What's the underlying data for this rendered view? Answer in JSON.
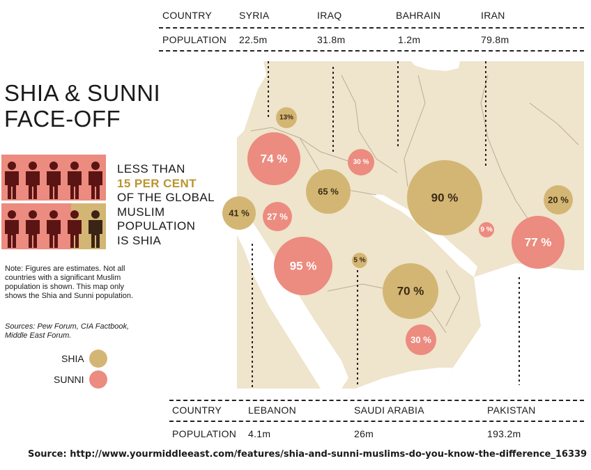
{
  "title_line1": "SHIA & SUNNI",
  "title_line2": "FACE-OFF",
  "blurb": {
    "line1": "LESS THAN",
    "line2": "15 PER CENT",
    "line3": "OF THE GLOBAL",
    "line4": "MUSLIM",
    "line5": "POPULATION",
    "line6": "IS SHIA"
  },
  "note": "Note: Figures are estimates. Not all countries with a significant Muslim population is shown. This map only shows the Shia and Sunni population.",
  "sources": "Sources: Pew Forum, CIA Factbook, Middle East Forum.",
  "legend": [
    {
      "label": "SHIA",
      "color": "#d4b674"
    },
    {
      "label": "SUNNI",
      "color": "#ec8b7f"
    }
  ],
  "top_table": {
    "country_label": "COUNTRY",
    "population_label": "POPULATION",
    "countries": [
      "SYRIA",
      "IRAQ",
      "BAHRAIN",
      "IRAN"
    ],
    "populations": [
      "22.5m",
      "31.8m",
      "1.2m",
      "79.8m"
    ]
  },
  "bottom_table": {
    "country_label": "COUNTRY",
    "population_label": "POPULATION",
    "countries": [
      "LEBANON",
      "SAUDI ARABIA",
      "PAKISTAN"
    ],
    "populations": [
      "4.1m",
      "26m",
      "193.2m"
    ]
  },
  "bubbles": [
    {
      "label": "13%",
      "type": "shia",
      "value": 13
    },
    {
      "label": "74 %",
      "type": "sunni",
      "value": 74
    },
    {
      "label": "30 %",
      "type": "sunni",
      "value": 30
    },
    {
      "label": "65 %",
      "type": "shia",
      "value": 65
    },
    {
      "label": "41 %",
      "type": "shia",
      "value": 41
    },
    {
      "label": "27 %",
      "type": "sunni",
      "value": 27
    },
    {
      "label": "95 %",
      "type": "sunni",
      "value": 95
    },
    {
      "label": "5 %",
      "type": "shia",
      "value": 5
    },
    {
      "label": "90 %",
      "type": "shia",
      "value": 90
    },
    {
      "label": "9 %",
      "type": "sunni",
      "value": 9
    },
    {
      "label": "20 %",
      "type": "shia",
      "value": 20
    },
    {
      "label": "77 %",
      "type": "sunni",
      "value": 77
    },
    {
      "label": "70 %",
      "type": "shia",
      "value": 70
    },
    {
      "label": "30 %",
      "type": "sunni",
      "value": 30
    }
  ],
  "colors": {
    "shia": "#d4b674",
    "sunni": "#ec8b7f",
    "land": "#efe4cc",
    "water": "#ffffff",
    "people": "#5a1414",
    "people_bg": "#ec8b7f",
    "people_bg_shia": "#d4b674"
  },
  "source_line": "Source: http://www.yourmiddleeast.com/features/shia-and-sunni-muslims-do-you-know-the-difference_16339"
}
